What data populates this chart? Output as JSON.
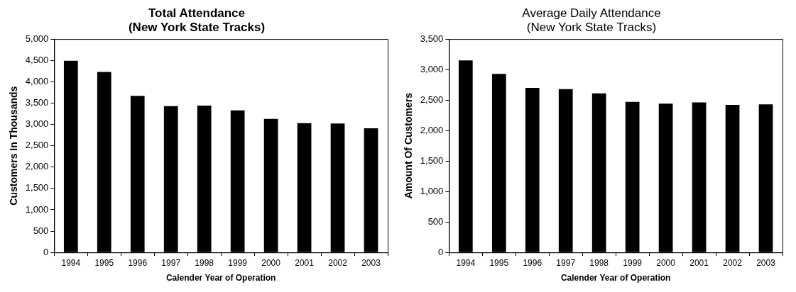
{
  "chart_data": [
    {
      "type": "bar",
      "title": "Total Attendance\n(New York State Tracks)",
      "xlabel": "Calender Year of Operation",
      "ylabel": "Customers In Thousands",
      "categories": [
        "1994",
        "1995",
        "1996",
        "1997",
        "1998",
        "1999",
        "2000",
        "2001",
        "2002",
        "2003"
      ],
      "values": [
        4490,
        4230,
        3670,
        3430,
        3440,
        3330,
        3130,
        3030,
        3020,
        2910
      ],
      "color": "#000000",
      "ylim": [
        0,
        5000
      ],
      "yticks": [
        {
          "value": 0,
          "label": "0"
        },
        {
          "value": 500,
          "label": "500"
        },
        {
          "value": 1000,
          "label": "1,000"
        },
        {
          "value": 1500,
          "label": "1,500"
        },
        {
          "value": 2000,
          "label": "2,000"
        },
        {
          "value": 2500,
          "label": "2,500"
        },
        {
          "value": 3000,
          "label": "3,000"
        },
        {
          "value": 3500,
          "label": "3,500"
        },
        {
          "value": 4000,
          "label": "4,000"
        },
        {
          "value": 4500,
          "label": "4,500"
        },
        {
          "value": 5000,
          "label": "5,000"
        }
      ],
      "grid": false,
      "legend": false
    },
    {
      "type": "bar",
      "title": "Average Daily Attendance\n(New York State Tracks)",
      "xlabel": "Calender Year of Operation",
      "ylabel": "Amount Of Customers",
      "categories": [
        "1994",
        "1995",
        "1996",
        "1997",
        "1998",
        "1999",
        "2000",
        "2001",
        "2002",
        "2003"
      ],
      "values": [
        3150,
        2930,
        2700,
        2680,
        2610,
        2470,
        2440,
        2460,
        2420,
        2430
      ],
      "color": "#000000",
      "ylim": [
        0,
        3500
      ],
      "yticks": [
        {
          "value": 0,
          "label": "0"
        },
        {
          "value": 500,
          "label": "500"
        },
        {
          "value": 1000,
          "label": "1,000"
        },
        {
          "value": 1500,
          "label": "1,500"
        },
        {
          "value": 2000,
          "label": "2,000"
        },
        {
          "value": 2500,
          "label": "2,500"
        },
        {
          "value": 3000,
          "label": "3,000"
        },
        {
          "value": 3500,
          "label": "3,500"
        }
      ],
      "grid": false,
      "legend": false
    }
  ]
}
